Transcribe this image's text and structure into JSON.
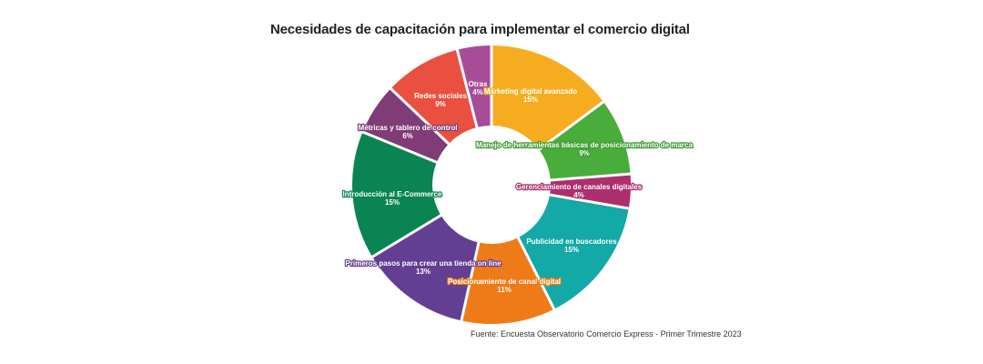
{
  "chart_data": {
    "type": "pie",
    "title": "Necesidades de capacitación para implementar el comercio digital",
    "source": "Fuente: Encuesta Observatorio Comercio Express - Primer Trimestre 2023",
    "slices": [
      {
        "label": "Márketing digital avanzado",
        "pct_label": "15%",
        "value": 15,
        "color": "#F5AD1F",
        "text_color": "#ffffff",
        "outline": "#F5AD1F"
      },
      {
        "label": "Manejo de herramientas básicas de posicionamiento de marca",
        "pct_label": "9%",
        "value": 9,
        "color": "#49AD3C",
        "text_color": "#ffffff",
        "outline": "#3E9A33"
      },
      {
        "label": "Gerenciamiento de canales digitales",
        "pct_label": "4%",
        "value": 4,
        "color": "#AD2F6E",
        "text_color": "#ffffff",
        "outline": "#AD2F6E"
      },
      {
        "label": "Publicidad en buscadores",
        "pct_label": "15%",
        "value": 15,
        "color": "#12A9A6",
        "text_color": "#ffffff",
        "outline": "#12A9A6"
      },
      {
        "label": "Posicionamiento de canal digital",
        "pct_label": "11%",
        "value": 11,
        "color": "#EF7B18",
        "text_color": "#ffffff",
        "outline": "#EF7B18"
      },
      {
        "label": "Primeros pasos para crear una tienda on line",
        "pct_label": "13%",
        "value": 13,
        "color": "#633F93",
        "text_color": "#ffffff",
        "outline": "#633F93"
      },
      {
        "label": "Introducción al E-Commerce",
        "pct_label": "15%",
        "value": 15,
        "color": "#0A8452",
        "text_color": "#ffffff",
        "outline": "#0A8452"
      },
      {
        "label": "Métricas y tablero de control",
        "pct_label": "6%",
        "value": 6,
        "color": "#7F3C76",
        "text_color": "#ffffff",
        "outline": "#7F3C76"
      },
      {
        "label": "Redes sociales",
        "pct_label": "9%",
        "value": 9,
        "color": "#E9503F",
        "text_color": "#ffffff",
        "outline": "#E9503F"
      },
      {
        "label": "Otras",
        "pct_label": "4%",
        "value": 4,
        "color": "#A84C98",
        "text_color": "#ffffff",
        "outline": "#A84C98"
      }
    ]
  }
}
